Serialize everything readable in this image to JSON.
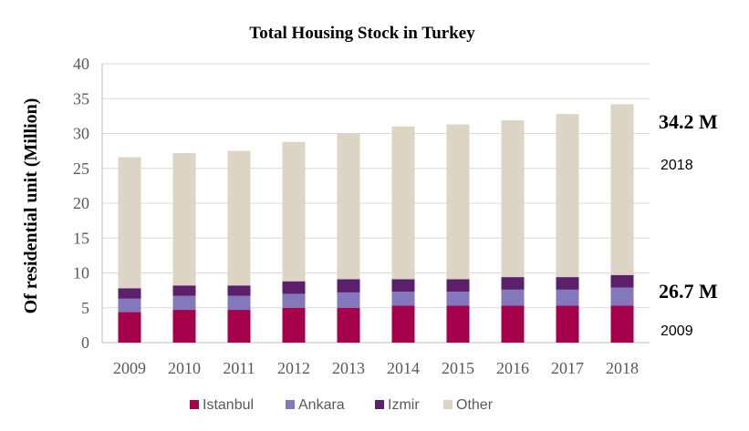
{
  "chart_data": {
    "type": "bar",
    "stacked": true,
    "title": "Total Housing Stock in Turkey",
    "xlabel": "",
    "ylabel": "Of residential unit (Million)",
    "ylim": [
      0,
      40
    ],
    "yticks": [
      0,
      5,
      10,
      15,
      20,
      25,
      30,
      35,
      40
    ],
    "grid": true,
    "legend_position": "bottom",
    "categories": [
      "2009",
      "2010",
      "2011",
      "2012",
      "2013",
      "2014",
      "2015",
      "2016",
      "2017",
      "2018"
    ],
    "series": [
      {
        "name": "Istanbul",
        "color": "#A5004A",
        "values": [
          4.4,
          4.7,
          4.7,
          5.0,
          5.0,
          5.3,
          5.3,
          5.3,
          5.3,
          5.3
        ]
      },
      {
        "name": "Ankara",
        "color": "#8378BC",
        "values": [
          1.9,
          2.0,
          2.0,
          2.0,
          2.2,
          2.0,
          2.0,
          2.3,
          2.3,
          2.6
        ]
      },
      {
        "name": "Izmir",
        "color": "#5B1F6B",
        "values": [
          1.5,
          1.5,
          1.5,
          1.8,
          1.9,
          1.8,
          1.8,
          1.8,
          1.8,
          1.8
        ]
      },
      {
        "name": "Other",
        "color": "#DCD5C6",
        "values": [
          18.8,
          19.0,
          19.3,
          20.0,
          20.9,
          21.9,
          22.2,
          22.5,
          23.4,
          24.5
        ]
      }
    ],
    "annotations": [
      {
        "value_label": "34.2 M",
        "year_label": "2018"
      },
      {
        "value_label": "26.7 M",
        "year_label": "2009"
      }
    ]
  }
}
